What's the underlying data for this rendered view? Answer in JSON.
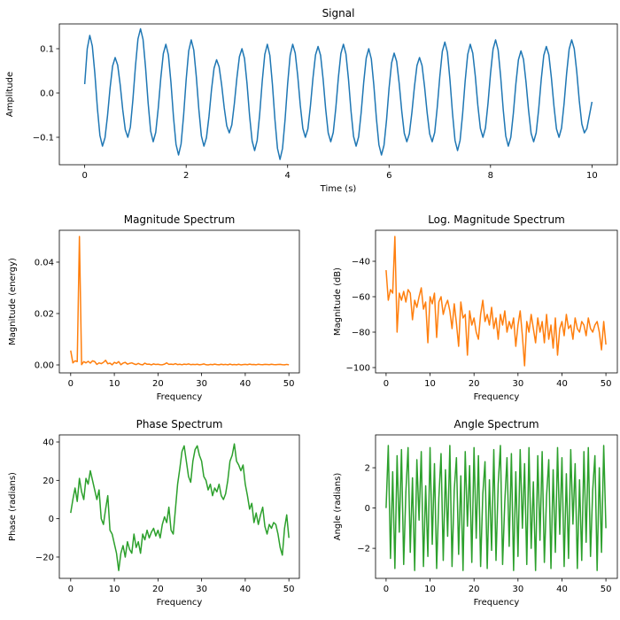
{
  "colors": {
    "signal": "#1f77b4",
    "magnitude": "#ff7f0e",
    "phase": "#2ca02c"
  },
  "chart_data": [
    {
      "id": "signal",
      "type": "line",
      "title": "Signal",
      "xlabel": "Time (s)",
      "ylabel": "Amplitude",
      "xlim": [
        -0.5,
        10.5
      ],
      "ylim": [
        -0.162,
        0.156
      ],
      "xticks": [
        {
          "v": 0,
          "label": "0"
        },
        {
          "v": 2,
          "label": "2"
        },
        {
          "v": 4,
          "label": "4"
        },
        {
          "v": 6,
          "label": "6"
        },
        {
          "v": 8,
          "label": "8"
        },
        {
          "v": 10,
          "label": "10"
        }
      ],
      "yticks": [
        {
          "v": -0.1,
          "label": "−0.1"
        },
        {
          "v": 0,
          "label": "0.0"
        },
        {
          "v": 0.1,
          "label": "0.1"
        }
      ],
      "x": {
        "start": 0,
        "step": 0.05
      },
      "series": [
        {
          "color": "#1f77b4",
          "values": [
            0.02,
            0.1,
            0.13,
            0.106,
            0.044,
            -0.034,
            -0.096,
            -0.12,
            -0.101,
            -0.051,
            0.011,
            0.061,
            0.08,
            0.063,
            0.018,
            -0.038,
            -0.083,
            -0.1,
            -0.077,
            -0.015,
            0.06,
            0.122,
            0.145,
            0.121,
            0.057,
            -0.022,
            -0.086,
            -0.11,
            -0.089,
            -0.034,
            0.034,
            0.089,
            0.11,
            0.086,
            0.024,
            -0.054,
            -0.116,
            -0.14,
            -0.115,
            -0.05,
            0.03,
            0.095,
            0.12,
            0.097,
            0.037,
            -0.037,
            -0.097,
            -0.12,
            -0.101,
            -0.053,
            0.008,
            0.056,
            0.075,
            0.059,
            0.018,
            -0.033,
            -0.074,
            -0.09,
            -0.072,
            -0.024,
            0.034,
            0.082,
            0.1,
            0.078,
            0.021,
            -0.051,
            -0.108,
            -0.13,
            -0.107,
            -0.047,
            0.027,
            0.087,
            0.11,
            0.085,
            0.02,
            -0.06,
            -0.125,
            -0.15,
            -0.125,
            -0.06,
            0.02,
            0.085,
            0.11,
            0.09,
            0.038,
            -0.028,
            -0.08,
            -0.1,
            -0.081,
            -0.029,
            0.034,
            0.086,
            0.105,
            0.085,
            0.031,
            -0.036,
            -0.09,
            -0.11,
            -0.089,
            -0.034,
            0.034,
            0.089,
            0.11,
            0.088,
            0.031,
            -0.041,
            -0.098,
            -0.12,
            -0.099,
            -0.044,
            0.024,
            0.079,
            0.1,
            0.077,
            0.017,
            -0.057,
            -0.117,
            -0.14,
            -0.118,
            -0.061,
            0.011,
            0.068,
            0.09,
            0.071,
            0.021,
            -0.041,
            -0.091,
            -0.11,
            -0.092,
            -0.044,
            0.014,
            0.062,
            0.08,
            0.062,
            0.014,
            -0.044,
            -0.092,
            -0.11,
            -0.089,
            -0.032,
            0.037,
            0.094,
            0.115,
            0.092,
            0.03,
            -0.045,
            -0.107,
            -0.13,
            -0.107,
            -0.047,
            0.027,
            0.087,
            0.11,
            0.09,
            0.038,
            -0.028,
            -0.08,
            -0.1,
            -0.079,
            -0.024,
            0.044,
            0.099,
            0.12,
            0.097,
            0.037,
            -0.037,
            -0.097,
            -0.12,
            -0.1,
            -0.046,
            0.021,
            0.075,
            0.095,
            0.076,
            0.024,
            -0.039,
            -0.091,
            -0.11,
            -0.09,
            -0.036,
            0.031,
            0.085,
            0.105,
            0.086,
            0.034,
            -0.029,
            -0.081,
            -0.1,
            -0.079,
            -0.024,
            0.044,
            0.099,
            0.12,
            0.1,
            0.048,
            -0.018,
            -0.07,
            -0.09,
            -0.08,
            -0.05,
            -0.02
          ]
        }
      ]
    },
    {
      "id": "magnitude",
      "type": "line",
      "title": "Magnitude Spectrum",
      "xlabel": "Frequency",
      "ylabel": "Magnitude (energy)",
      "xlim": [
        -2.6,
        52.4
      ],
      "ylim": [
        -0.0031,
        0.0524
      ],
      "xticks": [
        {
          "v": 0,
          "label": "0"
        },
        {
          "v": 10,
          "label": "10"
        },
        {
          "v": 20,
          "label": "20"
        },
        {
          "v": 30,
          "label": "30"
        },
        {
          "v": 40,
          "label": "40"
        },
        {
          "v": 50,
          "label": "50"
        }
      ],
      "yticks": [
        {
          "v": 0,
          "label": "0.00"
        },
        {
          "v": 0.02,
          "label": "0.02"
        },
        {
          "v": 0.04,
          "label": "0.04"
        }
      ],
      "x": {
        "start": 0,
        "step": 0.5
      },
      "series": [
        {
          "color": "#ff7f0e",
          "values": [
            0.0056,
            0.0008,
            0.0016,
            0.0013,
            0.05,
            0.0001,
            0.0013,
            0.0008,
            0.0014,
            0.0007,
            0.0016,
            0.0013,
            0.0002,
            0.0008,
            0.0005,
            0.001,
            0.0018,
            0.00045,
            0.0007,
            5e-05,
            0.001,
            0.0006,
            0.0013,
            7e-05,
            0.0007,
            0.001,
            0.0003,
            0.0006,
            0.0008,
            0.0004,
            0.00013,
            0.0006,
            0.00018,
            4e-05,
            0.0007,
            0.00025,
            0.0003,
            2e-05,
            0.0004,
            0.00016,
            0.00025,
            0.0001,
            6e-05,
            0.0003,
            0.0008,
            0.0002,
            0.0003,
            0.00016,
            0.0005,
            0.00013,
            0.00025,
            6e-05,
            0.0003,
            0.00016,
            0.0004,
            0.0001,
            0.0002,
            0.00013,
            0.00025,
            4e-05,
            0.00016,
            0.0004,
            8e-05,
            1e-05,
            0.0002,
            0.0001,
            0.0003,
            0.00013,
            5e-05,
            0.00025,
            0.0001,
            0.0002,
            5e-05,
            0.0003,
            6e-05,
            0.00016,
            3.5e-05,
            0.00025,
            2e-05,
            0.00013,
            0.0002,
            8e-05,
            0.0003,
            0.00013,
            0.00016,
            6e-05,
            0.00025,
            0.00013,
            0.0001,
            0.0002,
            0.00016,
            8e-05,
            0.00025,
            0.00013,
            0.0001,
            0.00016,
            0.0002,
            0.0001,
            3e-05,
            0.0002,
            4.5e-05
          ]
        }
      ]
    },
    {
      "id": "log-magnitude",
      "type": "line",
      "title": "Log. Magnitude Spectrum",
      "xlabel": "Frequency",
      "ylabel": "Magnitude (dB)",
      "xlim": [
        -2.4,
        52.6
      ],
      "ylim": [
        -103,
        -22.5
      ],
      "xticks": [
        {
          "v": 0,
          "label": "0"
        },
        {
          "v": 10,
          "label": "10"
        },
        {
          "v": 20,
          "label": "20"
        },
        {
          "v": 30,
          "label": "30"
        },
        {
          "v": 40,
          "label": "40"
        },
        {
          "v": 50,
          "label": "50"
        }
      ],
      "yticks": [
        {
          "v": -100,
          "label": "−100"
        },
        {
          "v": -80,
          "label": "−80"
        },
        {
          "v": -60,
          "label": "−60"
        },
        {
          "v": -40,
          "label": "−40"
        }
      ],
      "x": {
        "start": 0,
        "step": 0.5
      },
      "series": [
        {
          "color": "#ff7f0e",
          "values": [
            -45,
            -62,
            -56,
            -58,
            -26,
            -80,
            -58,
            -62,
            -57,
            -63,
            -56,
            -58,
            -73,
            -62,
            -66,
            -60,
            -55,
            -67,
            -63,
            -86,
            -60,
            -64,
            -58,
            -83,
            -63,
            -60,
            -70,
            -65,
            -62,
            -68,
            -78,
            -64,
            -75,
            -88,
            -63,
            -72,
            -70,
            -93,
            -68,
            -76,
            -72,
            -80,
            -84,
            -70,
            -62,
            -74,
            -70,
            -76,
            -66,
            -78,
            -72,
            -84,
            -70,
            -76,
            -68,
            -80,
            -74,
            -78,
            -72,
            -88,
            -76,
            -68,
            -82,
            -99,
            -74,
            -80,
            -70,
            -78,
            -86,
            -72,
            -80,
            -74,
            -86,
            -70,
            -84,
            -76,
            -89,
            -72,
            -93,
            -78,
            -74,
            -82,
            -70,
            -78,
            -76,
            -84,
            -72,
            -78,
            -80,
            -74,
            -76,
            -82,
            -72,
            -78,
            -80,
            -76,
            -74,
            -80,
            -90,
            -74,
            -87
          ]
        }
      ]
    },
    {
      "id": "phase",
      "type": "line",
      "title": "Phase Spectrum",
      "xlabel": "Frequency",
      "ylabel": "Phase (radians)",
      "xlim": [
        -2.6,
        52.4
      ],
      "ylim": [
        -31.1,
        43.7
      ],
      "xticks": [
        {
          "v": 0,
          "label": "0"
        },
        {
          "v": 10,
          "label": "10"
        },
        {
          "v": 20,
          "label": "20"
        },
        {
          "v": 30,
          "label": "30"
        },
        {
          "v": 40,
          "label": "40"
        },
        {
          "v": 50,
          "label": "50"
        }
      ],
      "yticks": [
        {
          "v": -20,
          "label": "−20"
        },
        {
          "v": 0,
          "label": "0"
        },
        {
          "v": 20,
          "label": "20"
        },
        {
          "v": 40,
          "label": "40"
        }
      ],
      "x": {
        "start": 0,
        "step": 0.5
      },
      "series": [
        {
          "color": "#2ca02c",
          "values": [
            3,
            10,
            16,
            9,
            21,
            14,
            10,
            21,
            18,
            25,
            20,
            15,
            10,
            15,
            0,
            -3,
            5,
            12,
            -6,
            -8,
            -13,
            -18,
            -27,
            -18,
            -14,
            -20,
            -12,
            -16,
            -18,
            -8,
            -15,
            -12,
            -18,
            -8,
            -11,
            -6,
            -10,
            -7,
            -5,
            -9,
            -6,
            -10,
            -3,
            1,
            -2,
            6,
            -6,
            -8,
            5,
            18,
            26,
            35,
            38,
            30,
            22,
            19,
            30,
            36,
            38,
            33,
            30,
            22,
            20,
            15,
            18,
            12,
            16,
            14,
            18,
            12,
            10,
            13,
            20,
            30,
            33,
            39,
            30,
            28,
            25,
            28,
            18,
            12,
            5,
            8,
            -2,
            3,
            -3,
            2,
            6,
            -4,
            -8,
            -3,
            -5,
            -2,
            -3,
            -8,
            -15,
            -19,
            -5,
            2,
            -10
          ]
        }
      ]
    },
    {
      "id": "angle",
      "type": "line",
      "title": "Angle Spectrum",
      "xlabel": "Frequency",
      "ylabel": "Angle (radians)",
      "xlim": [
        -2.4,
        52.6
      ],
      "ylim": [
        -3.49,
        3.63
      ],
      "xticks": [
        {
          "v": 0,
          "label": "0"
        },
        {
          "v": 10,
          "label": "10"
        },
        {
          "v": 20,
          "label": "20"
        },
        {
          "v": 30,
          "label": "30"
        },
        {
          "v": 40,
          "label": "40"
        },
        {
          "v": 50,
          "label": "50"
        }
      ],
      "yticks": [
        {
          "v": -2,
          "label": "−2"
        },
        {
          "v": 0,
          "label": "0"
        },
        {
          "v": 2,
          "label": "2"
        }
      ],
      "x": {
        "start": 0,
        "step": 0.5
      },
      "series": [
        {
          "color": "#2ca02c",
          "values": [
            0,
            3.1,
            -2.5,
            1.8,
            -3.0,
            2.6,
            -1.2,
            2.9,
            -2.8,
            0.8,
            3.0,
            -2.2,
            1.5,
            -3.1,
            2.4,
            -0.6,
            2.8,
            -2.9,
            1.1,
            -2.4,
            3.0,
            -1.8,
            2.2,
            -3.0,
            0.5,
            2.7,
            -2.6,
            1.9,
            -1.4,
            3.1,
            -2.9,
            0.9,
            2.5,
            -2.3,
            1.6,
            -3.1,
            2.8,
            -0.9,
            2.1,
            -2.7,
            3.0,
            -1.5,
            2.6,
            -2.9,
            0.7,
            2.3,
            -3.0,
            1.4,
            -2.1,
            2.9,
            -2.6,
            1.2,
            3.1,
            -2.8,
            0.3,
            2.5,
            -1.9,
            2.7,
            -3.1,
            1.8,
            -2.4,
            2.9,
            -1.0,
            2.2,
            -2.8,
            3.0,
            -2.0,
            1.3,
            -3.1,
            2.6,
            -1.6,
            2.8,
            -2.7,
            0.6,
            2.4,
            -3.0,
            1.9,
            -2.2,
            3.0,
            -1.3,
            2.5,
            -2.9,
            1.7,
            -2.5,
            2.9,
            -0.8,
            2.2,
            -3.0,
            1.4,
            -2.6,
            2.8,
            -1.7,
            3.0,
            -2.4,
            0.9,
            2.6,
            -3.1,
            2.0,
            -2.2,
            3.1,
            -1.0
          ]
        }
      ]
    }
  ]
}
